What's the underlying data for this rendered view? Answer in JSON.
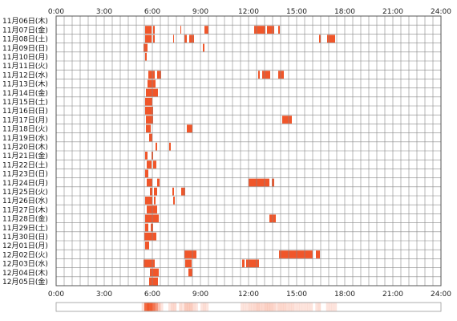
{
  "chart_data": {
    "type": "heatmap",
    "x_ticks": [
      "0:00",
      "3:00",
      "6:00",
      "9:00",
      "12:00",
      "15:00",
      "18:00",
      "21:00",
      "24:00"
    ],
    "x_range_hours": [
      0,
      24
    ],
    "grid": true,
    "colors": {
      "activity": "#f0562a",
      "grid": "#888888",
      "border": "#555555"
    },
    "rows": [
      {
        "label": "11月06日(木)",
        "spans": []
      },
      {
        "label": "11月07日(金)",
        "spans": [
          [
            5.55,
            5.95
          ],
          [
            6.05,
            6.15
          ],
          [
            7.75,
            7.8
          ],
          [
            9.25,
            9.5
          ],
          [
            12.35,
            13.05
          ],
          [
            13.15,
            13.6
          ],
          [
            13.85,
            13.95
          ]
        ]
      },
      {
        "label": "11月08日(土)",
        "spans": [
          [
            5.55,
            5.95
          ],
          [
            6.05,
            6.15
          ],
          [
            7.3,
            7.35
          ],
          [
            8.0,
            8.15
          ],
          [
            8.3,
            8.6
          ],
          [
            16.4,
            16.5
          ],
          [
            16.9,
            17.4
          ]
        ]
      },
      {
        "label": "11月09日(日)",
        "spans": [
          [
            5.45,
            5.7
          ],
          [
            9.15,
            9.25
          ]
        ]
      },
      {
        "label": "11月10日(月)",
        "spans": [
          [
            5.55,
            5.65
          ]
        ]
      },
      {
        "label": "11月11日(火)",
        "spans": []
      },
      {
        "label": "11月12日(水)",
        "spans": [
          [
            5.75,
            6.15
          ],
          [
            6.3,
            6.55
          ],
          [
            12.6,
            12.7
          ],
          [
            12.85,
            13.35
          ],
          [
            13.85,
            14.2
          ]
        ]
      },
      {
        "label": "11月13日(木)",
        "spans": [
          [
            5.7,
            6.2
          ]
        ]
      },
      {
        "label": "11月14日(金)",
        "spans": [
          [
            5.6,
            6.35
          ]
        ]
      },
      {
        "label": "11月15日(土)",
        "spans": [
          [
            5.55,
            6.0
          ]
        ]
      },
      {
        "label": "11月16日(日)",
        "spans": [
          [
            5.55,
            6.05
          ]
        ]
      },
      {
        "label": "11月17日(月)",
        "spans": [
          [
            5.6,
            6.05
          ],
          [
            14.1,
            14.7
          ]
        ]
      },
      {
        "label": "11月18日(火)",
        "spans": [
          [
            5.6,
            5.9
          ],
          [
            8.15,
            8.5
          ]
        ]
      },
      {
        "label": "11月19日(水)",
        "spans": [
          [
            5.8,
            6.0
          ]
        ]
      },
      {
        "label": "11月20日(木)",
        "spans": [
          [
            6.2,
            6.3
          ],
          [
            7.05,
            7.15
          ]
        ]
      },
      {
        "label": "11月21日(金)",
        "spans": [
          [
            5.55,
            5.7
          ],
          [
            5.95,
            6.05
          ]
        ]
      },
      {
        "label": "11月22日(土)",
        "spans": [
          [
            5.65,
            5.95
          ],
          [
            6.05,
            6.25
          ]
        ]
      },
      {
        "label": "11月23日(日)",
        "spans": [
          [
            5.55,
            5.75
          ]
        ]
      },
      {
        "label": "11月24日(月)",
        "spans": [
          [
            5.65,
            6.0
          ],
          [
            6.3,
            6.45
          ],
          [
            12.0,
            13.3
          ],
          [
            13.45,
            13.6
          ]
        ]
      },
      {
        "label": "11月25日(火)",
        "spans": [
          [
            5.85,
            6.0
          ],
          [
            6.1,
            6.3
          ],
          [
            7.25,
            7.35
          ],
          [
            7.8,
            8.05
          ]
        ]
      },
      {
        "label": "11月26日(水)",
        "spans": [
          [
            5.55,
            6.0
          ],
          [
            6.1,
            6.2
          ],
          [
            7.3,
            7.4
          ]
        ]
      },
      {
        "label": "11月27日(木)",
        "spans": [
          [
            5.65,
            6.3
          ]
        ]
      },
      {
        "label": "11月28日(金)",
        "spans": [
          [
            5.55,
            6.4
          ],
          [
            13.3,
            13.7
          ]
        ]
      },
      {
        "label": "11月29日(土)",
        "spans": [
          [
            5.55,
            5.75
          ],
          [
            5.9,
            6.05
          ]
        ]
      },
      {
        "label": "11月30日(日)",
        "spans": [
          [
            5.5,
            6.25
          ]
        ]
      },
      {
        "label": "12月01日(月)",
        "spans": [
          [
            5.55,
            5.8
          ]
        ]
      },
      {
        "label": "12月02日(火)",
        "spans": [
          [
            8.0,
            8.75
          ],
          [
            13.9,
            16.0
          ],
          [
            16.2,
            16.45
          ]
        ]
      },
      {
        "label": "12月03日(水)",
        "spans": [
          [
            5.45,
            6.15
          ],
          [
            8.05,
            8.45
          ],
          [
            11.6,
            11.75
          ],
          [
            11.85,
            12.65
          ]
        ]
      },
      {
        "label": "12月04日(木)",
        "spans": [
          [
            5.85,
            6.4
          ],
          [
            8.25,
            8.5
          ]
        ]
      },
      {
        "label": "12月05日(金)",
        "spans": [
          [
            5.8,
            6.35
          ]
        ]
      }
    ]
  }
}
